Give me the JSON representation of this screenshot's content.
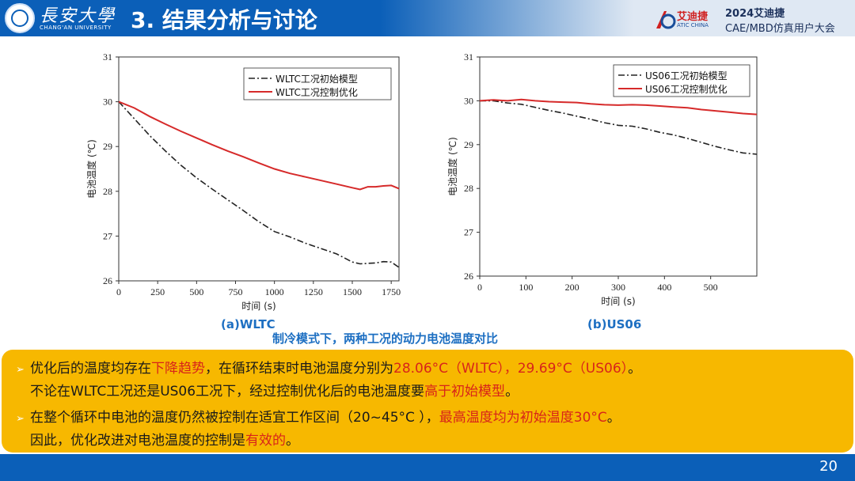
{
  "header": {
    "university_cn": "長安大學",
    "university_en": "CHANG'AN UNIVERSITY",
    "title": "3. 结果分析与讨论",
    "conf_brand_cn": "艾迪捷",
    "conf_brand_en": "ATIC CHINA",
    "conf_year": "2024艾迪捷",
    "conf_name": "CAE/MBD仿真用户大会"
  },
  "colors": {
    "brand_blue": "#0b5fb8",
    "callout_bg": "#f7b800",
    "highlight_red": "#d8241a",
    "caption_blue": "#1d6fc2",
    "series_initial": "#222222",
    "series_optimized": "#d62a2a"
  },
  "captions": {
    "a": "(a)WLTC",
    "b": "(b)US06",
    "main": "制冷模式下，两种工况的动力电池温度对比"
  },
  "chart_data": [
    {
      "type": "line",
      "xlabel": "时间 (s)",
      "ylabel": "电池温度 (℃)",
      "xlim": [
        0,
        1800
      ],
      "ylim": [
        26,
        31
      ],
      "xticks": [
        0,
        250,
        500,
        750,
        1000,
        1250,
        1500,
        1750
      ],
      "yticks": [
        26,
        27,
        28,
        29,
        30,
        31
      ],
      "legend_position": "top-right",
      "series": [
        {
          "name": "WLTC工况初始模型",
          "style": "dash-dot",
          "x": [
            0,
            100,
            200,
            300,
            400,
            500,
            600,
            700,
            800,
            900,
            1000,
            1100,
            1200,
            1300,
            1400,
            1500,
            1550,
            1600,
            1650,
            1700,
            1750,
            1800
          ],
          "y": [
            30.0,
            29.62,
            29.24,
            28.9,
            28.58,
            28.3,
            28.05,
            27.81,
            27.57,
            27.32,
            27.1,
            26.98,
            26.84,
            26.72,
            26.6,
            26.42,
            26.38,
            26.39,
            26.4,
            26.43,
            26.42,
            26.3
          ]
        },
        {
          "name": "WLTC工况控制优化",
          "style": "solid",
          "x": [
            0,
            100,
            200,
            300,
            400,
            500,
            600,
            700,
            800,
            900,
            1000,
            1100,
            1200,
            1300,
            1400,
            1500,
            1550,
            1600,
            1650,
            1700,
            1750,
            1800
          ],
          "y": [
            30.0,
            29.86,
            29.67,
            29.5,
            29.34,
            29.19,
            29.04,
            28.9,
            28.77,
            28.63,
            28.5,
            28.4,
            28.32,
            28.24,
            28.16,
            28.08,
            28.04,
            28.1,
            28.1,
            28.12,
            28.13,
            28.06
          ]
        }
      ]
    },
    {
      "type": "line",
      "xlabel": "时间 (s)",
      "ylabel": "电池温度 (℃)",
      "xlim": [
        0,
        600
      ],
      "ylim": [
        26,
        31
      ],
      "xticks": [
        0,
        100,
        200,
        300,
        400,
        500
      ],
      "yticks": [
        26,
        27,
        28,
        29,
        30,
        31
      ],
      "legend_position": "top-right",
      "series": [
        {
          "name": "US06工况初始模型",
          "style": "dash-dot",
          "x": [
            0,
            30,
            60,
            90,
            120,
            150,
            180,
            210,
            240,
            270,
            300,
            330,
            360,
            390,
            420,
            450,
            480,
            510,
            540,
            570,
            600
          ],
          "y": [
            30.0,
            30.0,
            29.95,
            29.92,
            29.85,
            29.78,
            29.72,
            29.65,
            29.58,
            29.5,
            29.44,
            29.42,
            29.36,
            29.28,
            29.22,
            29.14,
            29.05,
            28.96,
            28.88,
            28.81,
            28.78
          ]
        },
        {
          "name": "US06工况控制优化",
          "style": "solid",
          "x": [
            0,
            30,
            60,
            90,
            120,
            150,
            180,
            210,
            240,
            270,
            300,
            330,
            360,
            390,
            420,
            450,
            480,
            510,
            540,
            570,
            600
          ],
          "y": [
            30.0,
            30.02,
            30.0,
            30.03,
            30.0,
            29.98,
            29.97,
            29.96,
            29.93,
            29.91,
            29.9,
            29.91,
            29.9,
            29.88,
            29.86,
            29.84,
            29.8,
            29.77,
            29.74,
            29.71,
            29.69
          ]
        }
      ]
    }
  ],
  "bullets": [
    {
      "parts": [
        {
          "text": "优化后的温度均存在",
          "red": false
        },
        {
          "text": "下降趋势",
          "red": true
        },
        {
          "text": "，在循环结束时电池温度分别为",
          "red": false
        },
        {
          "text": "28.06°C（WLTC），29.69°C（US06）",
          "red": true
        },
        {
          "text": "。",
          "red": false
        }
      ],
      "cont": [
        {
          "text": "不论在WLTC工况还是US06工况下，经过控制优化后的电池温度要",
          "red": false
        },
        {
          "text": "高于初始模型",
          "red": true
        },
        {
          "text": "。",
          "red": false
        }
      ]
    },
    {
      "parts": [
        {
          "text": "在整个循环中电池的温度仍然被控制在适宜工作区间（20~45°C ），",
          "red": false
        },
        {
          "text": "最高温度均为初始温度30°C",
          "red": true
        },
        {
          "text": "。",
          "red": false
        }
      ],
      "cont": [
        {
          "text": "因此，优化改进对电池温度的控制是",
          "red": false
        },
        {
          "text": "有效的",
          "red": true
        },
        {
          "text": "。",
          "red": false
        }
      ]
    }
  ],
  "footer": {
    "page_number": "20"
  }
}
